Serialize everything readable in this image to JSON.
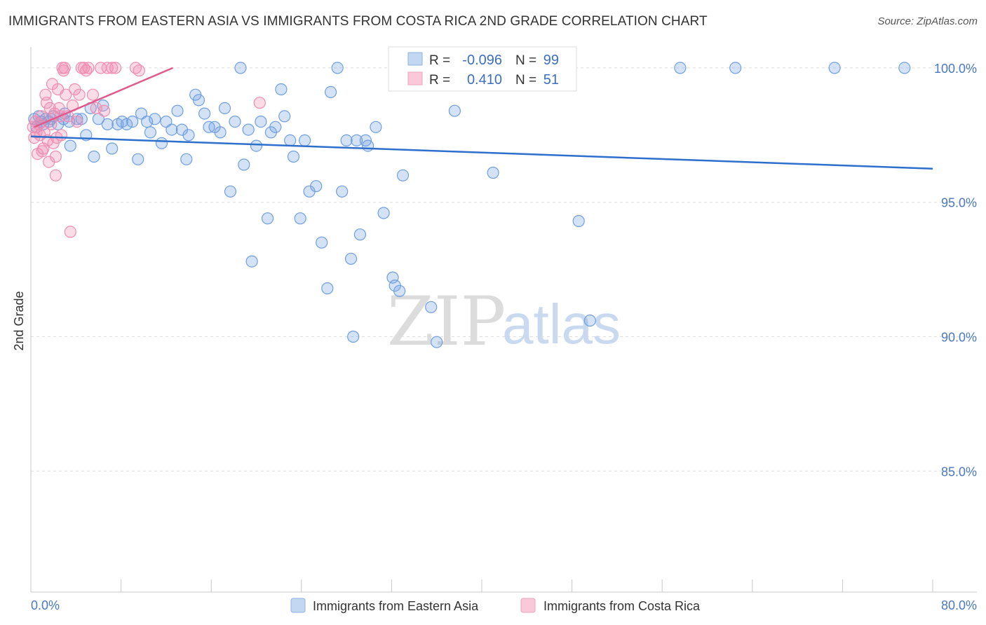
{
  "title": "IMMIGRANTS FROM EASTERN ASIA VS IMMIGRANTS FROM COSTA RICA 2ND GRADE CORRELATION CHART",
  "source": "Source: ZipAtlas.com",
  "watermark": {
    "zip": "ZIP",
    "atlas": "atlas"
  },
  "stats": {
    "r_label": "R =",
    "n_label": "N =",
    "series1": {
      "r": "-0.096",
      "n": "99"
    },
    "series2": {
      "r": "0.410",
      "n": "51"
    }
  },
  "chart_data": {
    "type": "scatter",
    "title": "IMMIGRANTS FROM EASTERN ASIA VS IMMIGRANTS FROM COSTA RICA 2ND GRADE CORRELATION CHART",
    "xlabel": "",
    "ylabel": "2nd Grade",
    "xlim": [
      0,
      80
    ],
    "ylim": [
      80.5,
      100.7
    ],
    "x_tick_labels": [
      "0.0%",
      "80.0%"
    ],
    "y_ticks": [
      100,
      95,
      90,
      85
    ],
    "y_tick_labels": [
      "100.0%",
      "95.0%",
      "90.0%",
      "85.0%"
    ],
    "legend": [
      "Immigrants from Eastern Asia",
      "Immigrants from Costa Rica"
    ],
    "series": [
      {
        "name": "Immigrants from Eastern Asia",
        "color": "#6f9fe0",
        "trend_color": "#2f6fcc",
        "trend": {
          "x": [
            0,
            80
          ],
          "y": [
            97.45,
            96.25
          ]
        },
        "points": [
          [
            0.3,
            98.1
          ],
          [
            0.5,
            97.8
          ],
          [
            0.7,
            98.2
          ],
          [
            0.9,
            98.0
          ],
          [
            1.1,
            97.9
          ],
          [
            1.3,
            98.1
          ],
          [
            1.6,
            98.0
          ],
          [
            2.0,
            98.2
          ],
          [
            2.4,
            97.9
          ],
          [
            2.9,
            98.1
          ],
          [
            3.4,
            98.0
          ],
          [
            3.5,
            97.1
          ],
          [
            4.1,
            98.1
          ],
          [
            4.5,
            98.1
          ],
          [
            4.9,
            97.5
          ],
          [
            5.3,
            98.5
          ],
          [
            5.6,
            96.7
          ],
          [
            6.0,
            98.1
          ],
          [
            6.4,
            98.6
          ],
          [
            6.8,
            97.9
          ],
          [
            7.2,
            97.0
          ],
          [
            7.7,
            97.9
          ],
          [
            8.1,
            98.0
          ],
          [
            8.5,
            97.9
          ],
          [
            9.0,
            98.0
          ],
          [
            9.5,
            96.6
          ],
          [
            9.8,
            98.3
          ],
          [
            10.3,
            98.0
          ],
          [
            10.6,
            97.6
          ],
          [
            11.0,
            98.1
          ],
          [
            11.6,
            97.2
          ],
          [
            12.0,
            98.0
          ],
          [
            12.5,
            97.7
          ],
          [
            13.0,
            98.4
          ],
          [
            13.4,
            97.7
          ],
          [
            13.8,
            96.6
          ],
          [
            14.0,
            97.5
          ],
          [
            14.6,
            99.0
          ],
          [
            14.9,
            98.8
          ],
          [
            15.4,
            98.3
          ],
          [
            15.8,
            97.8
          ],
          [
            16.3,
            97.8
          ],
          [
            16.8,
            97.6
          ],
          [
            17.2,
            98.5
          ],
          [
            17.7,
            95.4
          ],
          [
            18.1,
            98.0
          ],
          [
            18.6,
            100.0
          ],
          [
            18.9,
            96.4
          ],
          [
            19.3,
            97.7
          ],
          [
            19.6,
            92.8
          ],
          [
            20.0,
            97.1
          ],
          [
            20.4,
            98.0
          ],
          [
            21.0,
            94.4
          ],
          [
            21.3,
            97.6
          ],
          [
            21.7,
            97.8
          ],
          [
            22.2,
            99.2
          ],
          [
            22.5,
            98.2
          ],
          [
            23.0,
            97.3
          ],
          [
            23.3,
            96.7
          ],
          [
            23.9,
            94.4
          ],
          [
            24.3,
            97.3
          ],
          [
            24.7,
            95.4
          ],
          [
            25.3,
            95.6
          ],
          [
            25.8,
            93.5
          ],
          [
            26.3,
            91.8
          ],
          [
            26.6,
            99.1
          ],
          [
            27.2,
            100.0
          ],
          [
            27.6,
            95.4
          ],
          [
            28.0,
            97.3
          ],
          [
            28.4,
            92.9
          ],
          [
            28.6,
            90.0
          ],
          [
            28.9,
            97.3
          ],
          [
            29.2,
            93.8
          ],
          [
            29.7,
            97.3
          ],
          [
            29.9,
            97.1
          ],
          [
            30.6,
            97.8
          ],
          [
            31.3,
            94.6
          ],
          [
            32.1,
            92.2
          ],
          [
            32.3,
            91.9
          ],
          [
            32.7,
            91.7
          ],
          [
            33.0,
            96.0
          ],
          [
            34.0,
            100.0
          ],
          [
            35.5,
            91.1
          ],
          [
            36.0,
            89.8
          ],
          [
            36.3,
            100.0
          ],
          [
            37.6,
            98.4
          ],
          [
            39.0,
            100.0
          ],
          [
            41.0,
            96.1
          ],
          [
            42.0,
            100.0
          ],
          [
            48.6,
            94.3
          ],
          [
            49.6,
            90.6
          ],
          [
            57.6,
            100.0
          ],
          [
            62.5,
            100.0
          ],
          [
            71.3,
            100.0
          ],
          [
            77.5,
            100.0
          ],
          [
            40.2,
            100.0
          ],
          [
            35.3,
            100.0
          ],
          [
            3.0,
            98.3
          ],
          [
            1.8,
            98.1
          ]
        ]
      },
      {
        "name": "Immigrants from Costa Rica",
        "color": "#f08cb0",
        "trend_color": "#e05a8c",
        "trend": {
          "x": [
            0.3,
            12.6
          ],
          "y": [
            97.8,
            100.0
          ]
        },
        "points": [
          [
            0.2,
            97.8
          ],
          [
            0.3,
            97.4
          ],
          [
            0.4,
            98.0
          ],
          [
            0.5,
            97.6
          ],
          [
            0.6,
            96.8
          ],
          [
            0.7,
            97.9
          ],
          [
            0.8,
            97.5
          ],
          [
            0.9,
            98.2
          ],
          [
            1.0,
            96.9
          ],
          [
            1.1,
            97.0
          ],
          [
            1.2,
            97.6
          ],
          [
            1.3,
            99.0
          ],
          [
            1.4,
            98.7
          ],
          [
            1.5,
            97.3
          ],
          [
            1.6,
            96.5
          ],
          [
            1.7,
            98.5
          ],
          [
            1.8,
            97.9
          ],
          [
            1.9,
            99.4
          ],
          [
            2.0,
            97.2
          ],
          [
            2.1,
            98.3
          ],
          [
            2.2,
            96.7
          ],
          [
            2.3,
            97.4
          ],
          [
            2.4,
            99.2
          ],
          [
            2.5,
            98.5
          ],
          [
            2.6,
            98.2
          ],
          [
            2.7,
            97.5
          ],
          [
            2.8,
            100.0
          ],
          [
            2.9,
            99.9
          ],
          [
            3.0,
            100.0
          ],
          [
            3.1,
            99.0
          ],
          [
            3.3,
            98.2
          ],
          [
            3.5,
            93.9
          ],
          [
            3.7,
            98.6
          ],
          [
            3.9,
            99.2
          ],
          [
            4.1,
            98.0
          ],
          [
            4.3,
            99.0
          ],
          [
            4.5,
            100.0
          ],
          [
            4.7,
            100.0
          ],
          [
            4.9,
            99.9
          ],
          [
            5.1,
            100.0
          ],
          [
            5.5,
            99.0
          ],
          [
            5.8,
            98.5
          ],
          [
            6.2,
            100.0
          ],
          [
            6.5,
            98.4
          ],
          [
            6.8,
            100.0
          ],
          [
            7.2,
            100.0
          ],
          [
            7.5,
            100.0
          ],
          [
            9.3,
            100.0
          ],
          [
            9.6,
            99.9
          ],
          [
            20.3,
            98.7
          ],
          [
            2.2,
            96.0
          ]
        ]
      }
    ]
  }
}
